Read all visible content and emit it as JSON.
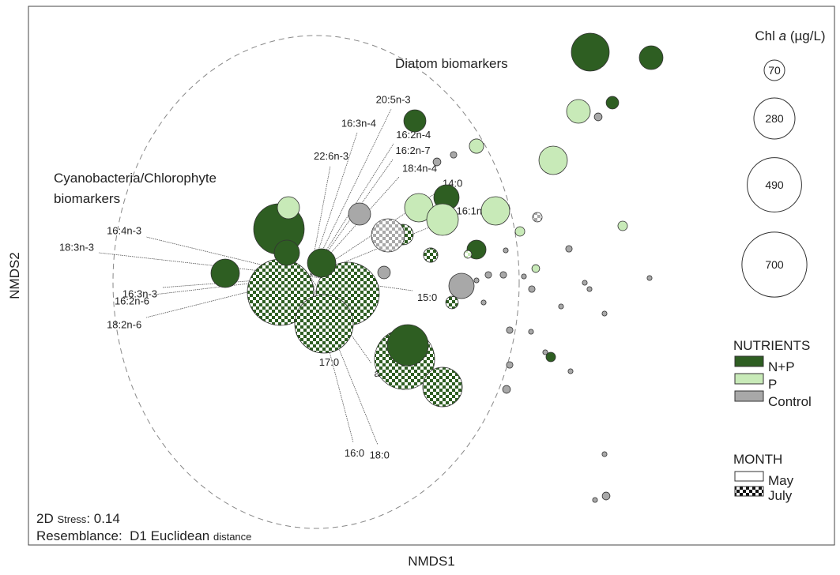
{
  "chart_data": {
    "type": "bubble",
    "x_label": "NMDS1",
    "y_label": "NMDS2",
    "xlim": [
      0,
      1020
    ],
    "ylim": [
      0,
      682
    ],
    "size_title": {
      "prefix": "Chl ",
      "italic": "a",
      "suffix": " (µg/L)"
    },
    "size_legend": [
      70,
      280,
      490,
      700
    ],
    "nutrients_title": "NUTRIENTS",
    "nutrients": [
      {
        "name": "N+P",
        "color": "#2e5e22"
      },
      {
        "name": "P",
        "color": "#c8eab8"
      },
      {
        "name": "Control",
        "color": "#a8a8a8"
      }
    ],
    "month_title": "MONTH",
    "months": [
      "May",
      "July"
    ],
    "series": [
      {
        "nutrient": 0,
        "month": 1,
        "x": [
          319,
          404,
          374,
          476,
          524,
          474,
          509,
          536
        ],
        "y": [
          320,
          318,
          280,
          235,
          200,
          393,
          367,
          307
        ],
        "size": [
          730,
          662,
          567,
          598,
          259,
          70,
          34,
          26
        ]
      },
      {
        "nutrient": 0,
        "month": 0,
        "x": [
          711,
          788,
          739,
          489,
          529,
          317,
          327,
          249,
          371,
          567,
          661,
          480
        ],
        "y": [
          624,
          617,
          560,
          537,
          440,
          400,
          370,
          344,
          357,
          374,
          238,
          253
        ],
        "size": [
          238,
          93,
          26,
          81,
          106,
          424,
          106,
          134,
          134,
          60,
          15,
          280
        ]
      },
      {
        "nutrient": 1,
        "month": 0,
        "x": [
          329,
          696,
          664,
          567,
          494,
          524,
          591,
          622,
          752,
          642
        ],
        "y": [
          427,
          549,
          487,
          505,
          427,
          412,
          423,
          397,
          404,
          350
        ],
        "size": [
          81,
          93,
          134,
          34,
          134,
          166,
          134,
          15,
          15,
          10
        ]
      },
      {
        "nutrient": 1,
        "month": 1,
        "x": [
          556
        ],
        "y": [
          368
        ],
        "size": [
          10
        ]
      },
      {
        "nutrient": 2,
        "month": 0,
        "x": [
          419,
          450,
          548,
          721,
          538,
          517,
          604,
          582,
          601,
          627,
          567,
          684,
          704,
          786,
          637,
          674,
          729,
          609,
          654,
          686,
          609,
          605,
          729,
          731,
          717,
          576,
          636,
          710
        ],
        "y": [
          419,
          345,
          328,
          542,
          494,
          485,
          373,
          342,
          342,
          340,
          335,
          375,
          332,
          338,
          324,
          302,
          293,
          272,
          244,
          220,
          228,
          197,
          115,
          62,
          57,
          307,
          270,
          324
        ],
        "size": [
          81,
          26,
          106,
          10,
          7,
          10,
          4,
          7,
          7,
          4,
          4,
          7,
          4,
          4,
          7,
          4,
          4,
          7,
          4,
          4,
          7,
          10,
          4,
          10,
          4,
          4,
          4,
          4
        ]
      },
      {
        "nutrient": 2,
        "month": 1,
        "x": [
          455,
          644
        ],
        "y": [
          392,
          415
        ],
        "size": [
          183,
          15
        ]
      }
    ],
    "vectors": [
      {
        "label": "20:5n-3",
        "x": 459,
        "y": 552
      },
      {
        "label": "16:3n-4",
        "x": 416,
        "y": 522
      },
      {
        "label": "16:2n-4",
        "x": 462,
        "y": 508
      },
      {
        "label": "22:6n-3",
        "x": 382,
        "y": 480
      },
      {
        "label": "16:2n-7",
        "x": 461,
        "y": 488
      },
      {
        "label": "18:4n-4",
        "x": 469,
        "y": 466
      },
      {
        "label": "14:0",
        "x": 519,
        "y": 448
      },
      {
        "label": "16:1n-7",
        "x": 536,
        "y": 414
      },
      {
        "label": "16:4n-3",
        "x": 149,
        "y": 390
      },
      {
        "label": "18:3n-3",
        "x": 89,
        "y": 370
      },
      {
        "label": "16:3n-3",
        "x": 169,
        "y": 326
      },
      {
        "label": "16:2n-6",
        "x": 159,
        "y": 317
      },
      {
        "label": "18:2n-6",
        "x": 149,
        "y": 288
      },
      {
        "label": "15:0",
        "x": 486,
        "y": 322
      },
      {
        "label": "ai17:0",
        "x": 434,
        "y": 230
      },
      {
        "label": "17:0",
        "x": 379,
        "y": 245
      },
      {
        "label": "16:0",
        "x": 411,
        "y": 130
      },
      {
        "label": "18:0",
        "x": 442,
        "y": 127
      }
    ],
    "annotations": [
      "Diatom biomarkers",
      "Cyanobacteria/Chlorophyte",
      "biomarkers"
    ],
    "stress": {
      "prefix": "2D ",
      "small": "Stress",
      "suffix": ": 0.14"
    },
    "resemblance": {
      "prefix": "Resemblance:  D1 Euclidean ",
      "small": "distance"
    }
  }
}
